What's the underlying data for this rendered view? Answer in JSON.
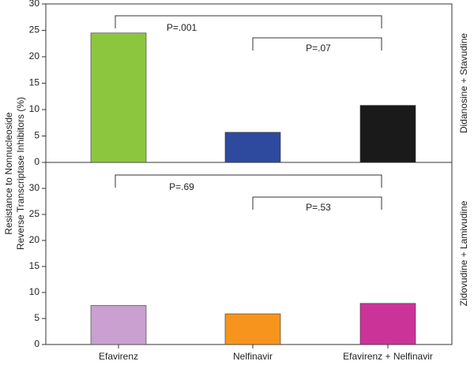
{
  "chart_data": {
    "type": "bar",
    "ylabel": [
      "Resistance to Nonnucleoside",
      "Reverse Transcriptase Inhibitors (%)"
    ],
    "categories": [
      "Efavirenz",
      "Nelfinavir",
      "Efavirenz + Nelfinavir"
    ],
    "panels": [
      {
        "label": "Didanosine + Stavudine",
        "values": [
          24.5,
          5.7,
          10.8
        ],
        "colors": [
          "#8cc63f",
          "#2e4a9e",
          "#1a1a1a"
        ],
        "ylim": [
          0,
          30
        ],
        "yticks": [
          0,
          5,
          10,
          15,
          20,
          25,
          30
        ],
        "annotations": [
          "P=.001",
          "P=.07"
        ]
      },
      {
        "label": "Zidovudine + Lamivudine",
        "values": [
          7.5,
          5.9,
          7.9
        ],
        "colors": [
          "#c9a0d0",
          "#f7941d",
          "#cc3399"
        ],
        "ylim": [
          0,
          35
        ],
        "yticks": [
          0,
          5,
          10,
          15,
          20,
          25,
          30
        ],
        "annotations": [
          "P=.69",
          "P=.53"
        ]
      }
    ]
  }
}
